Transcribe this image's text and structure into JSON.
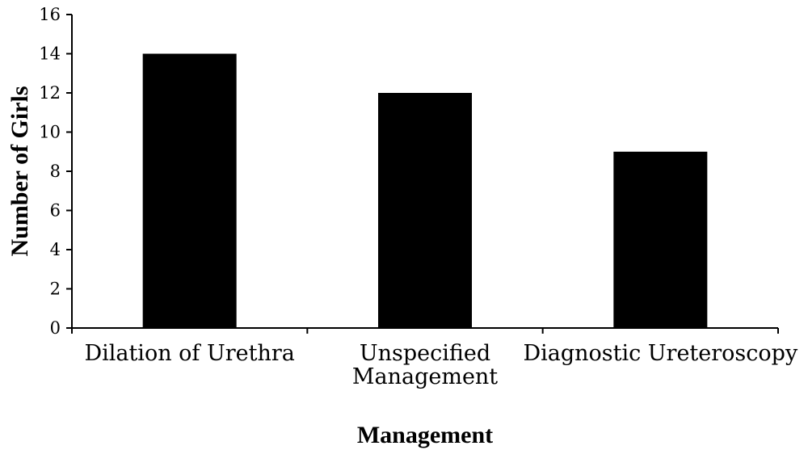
{
  "chart_data": {
    "type": "bar",
    "categories": [
      [
        "Dilation of Urethra"
      ],
      [
        "Unspecified",
        "Management"
      ],
      [
        "Diagnostic Ureteroscopy"
      ]
    ],
    "values": [
      14,
      12,
      9
    ],
    "xlabel": "Management",
    "ylabel": "Number of Girls",
    "ylim": [
      0,
      16
    ],
    "yticks": [
      0,
      2,
      4,
      6,
      8,
      10,
      12,
      14,
      16
    ],
    "grid": false,
    "bar_color": "#000000"
  }
}
